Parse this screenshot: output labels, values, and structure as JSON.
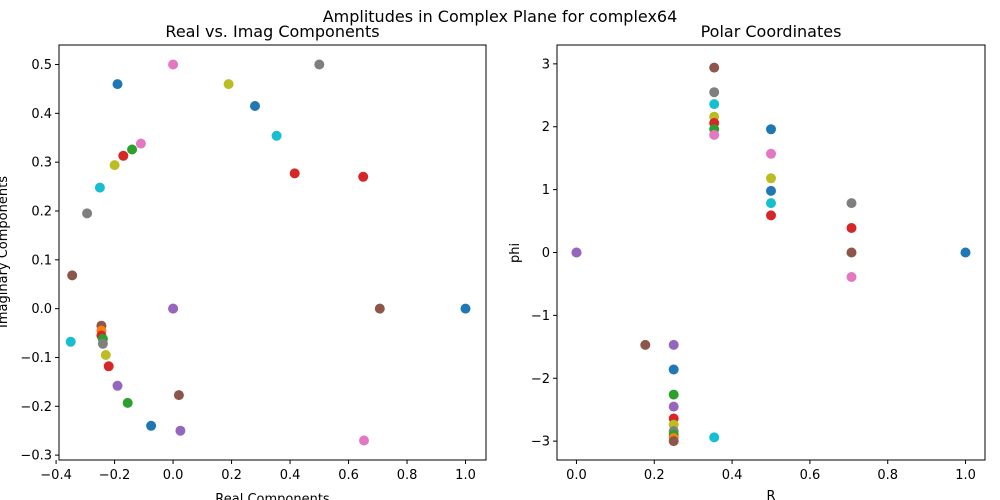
{
  "figure": {
    "title": "Amplitudes in Complex Plane for complex64"
  },
  "palette": [
    "#1f77b4",
    "#ff7f0e",
    "#2ca02c",
    "#d62728",
    "#9467bd",
    "#8c564b",
    "#e377c2",
    "#7f7f7f",
    "#bcbd22",
    "#17becf"
  ],
  "chart_data": [
    {
      "type": "scatter",
      "title": "Real vs. Imag Components",
      "xlabel": "Real Components",
      "ylabel": "Imaginary Components",
      "xlim": [
        -0.39,
        1.07
      ],
      "ylim": [
        -0.31,
        0.54
      ],
      "xticks": [
        -0.4,
        -0.2,
        0.0,
        0.2,
        0.4,
        0.6,
        0.8,
        1.0
      ],
      "xtick_labels": [
        "−0.4",
        "−0.2",
        "0.0",
        "0.2",
        "0.4",
        "0.6",
        "0.8",
        "1.0"
      ],
      "yticks": [
        -0.3,
        -0.2,
        -0.1,
        0.0,
        0.1,
        0.2,
        0.3,
        0.4,
        0.5
      ],
      "ytick_labels": [
        "−0.3",
        "−0.2",
        "−0.1",
        "0.0",
        "0.1",
        "0.2",
        "0.3",
        "0.4",
        "0.5"
      ],
      "grid": false,
      "points": [
        {
          "x": 1.0,
          "y": 0.0,
          "color": "#1f77b4"
        },
        {
          "x": 0.707,
          "y": 0.0,
          "color": "#8c564b"
        },
        {
          "x": 0.5,
          "y": 0.5,
          "color": "#7f7f7f"
        },
        {
          "x": 0.0,
          "y": 0.5,
          "color": "#e377c2"
        },
        {
          "x": 0.19,
          "y": 0.46,
          "color": "#bcbd22"
        },
        {
          "x": -0.19,
          "y": 0.46,
          "color": "#1f77b4"
        },
        {
          "x": 0.28,
          "y": 0.415,
          "color": "#1f77b4"
        },
        {
          "x": 0.354,
          "y": 0.354,
          "color": "#17becf"
        },
        {
          "x": -0.11,
          "y": 0.338,
          "color": "#e377c2"
        },
        {
          "x": -0.14,
          "y": 0.326,
          "color": "#2ca02c"
        },
        {
          "x": -0.17,
          "y": 0.313,
          "color": "#d62728"
        },
        {
          "x": -0.2,
          "y": 0.294,
          "color": "#bcbd22"
        },
        {
          "x": 0.416,
          "y": 0.277,
          "color": "#d62728"
        },
        {
          "x": 0.65,
          "y": 0.27,
          "color": "#d62728"
        },
        {
          "x": -0.25,
          "y": 0.248,
          "color": "#17becf"
        },
        {
          "x": -0.294,
          "y": 0.195,
          "color": "#7f7f7f"
        },
        {
          "x": -0.345,
          "y": 0.068,
          "color": "#8c564b"
        },
        {
          "x": 0.0,
          "y": 0.0,
          "color": "#e377c2"
        },
        {
          "x": 0.0,
          "y": 0.0,
          "color": "#9467bd"
        },
        {
          "x": -0.245,
          "y": -0.035,
          "color": "#8c564b"
        },
        {
          "x": -0.245,
          "y": -0.045,
          "color": "#ff7f0e"
        },
        {
          "x": -0.245,
          "y": -0.055,
          "color": "#d62728"
        },
        {
          "x": -0.24,
          "y": -0.062,
          "color": "#2ca02c"
        },
        {
          "x": -0.24,
          "y": -0.072,
          "color": "#7f7f7f"
        },
        {
          "x": -0.35,
          "y": -0.068,
          "color": "#17becf"
        },
        {
          "x": -0.23,
          "y": -0.095,
          "color": "#bcbd22"
        },
        {
          "x": -0.22,
          "y": -0.118,
          "color": "#d62728"
        },
        {
          "x": -0.19,
          "y": -0.158,
          "color": "#9467bd"
        },
        {
          "x": 0.02,
          "y": -0.177,
          "color": "#8c564b"
        },
        {
          "x": -0.155,
          "y": -0.193,
          "color": "#2ca02c"
        },
        {
          "x": -0.075,
          "y": -0.24,
          "color": "#1f77b4"
        },
        {
          "x": 0.025,
          "y": -0.25,
          "color": "#9467bd"
        },
        {
          "x": 0.653,
          "y": -0.27,
          "color": "#e377c2"
        }
      ]
    },
    {
      "type": "scatter",
      "title": "Polar Coordinates",
      "xlabel": "R",
      "ylabel": "phi",
      "xlim": [
        -0.05,
        1.05
      ],
      "ylim": [
        -3.3,
        3.3
      ],
      "xticks": [
        0.0,
        0.2,
        0.4,
        0.6,
        0.8,
        1.0
      ],
      "xtick_labels": [
        "0.0",
        "0.2",
        "0.4",
        "0.6",
        "0.8",
        "1.0"
      ],
      "yticks": [
        -3,
        -2,
        -1,
        0,
        1,
        2,
        3
      ],
      "ytick_labels": [
        "−3",
        "−2",
        "−1",
        "0",
        "1",
        "2",
        "3"
      ],
      "grid": false,
      "points": [
        {
          "x": 0.0,
          "y": 0.0,
          "color": "#e377c2"
        },
        {
          "x": 0.0,
          "y": 0.0,
          "color": "#9467bd"
        },
        {
          "x": 0.177,
          "y": -1.47,
          "color": "#8c564b"
        },
        {
          "x": 0.25,
          "y": -1.47,
          "color": "#9467bd"
        },
        {
          "x": 0.25,
          "y": -1.86,
          "color": "#1f77b4"
        },
        {
          "x": 0.25,
          "y": -2.26,
          "color": "#2ca02c"
        },
        {
          "x": 0.25,
          "y": -2.45,
          "color": "#9467bd"
        },
        {
          "x": 0.25,
          "y": -2.64,
          "color": "#d62728"
        },
        {
          "x": 0.25,
          "y": -2.74,
          "color": "#bcbd22"
        },
        {
          "x": 0.25,
          "y": -2.84,
          "color": "#7f7f7f"
        },
        {
          "x": 0.25,
          "y": -2.9,
          "color": "#2ca02c"
        },
        {
          "x": 0.25,
          "y": -2.95,
          "color": "#ff7f0e"
        },
        {
          "x": 0.25,
          "y": -3.0,
          "color": "#8c564b"
        },
        {
          "x": 0.354,
          "y": -2.94,
          "color": "#17becf"
        },
        {
          "x": 0.354,
          "y": 2.94,
          "color": "#8c564b"
        },
        {
          "x": 0.354,
          "y": 2.55,
          "color": "#7f7f7f"
        },
        {
          "x": 0.354,
          "y": 2.36,
          "color": "#17becf"
        },
        {
          "x": 0.354,
          "y": 2.16,
          "color": "#bcbd22"
        },
        {
          "x": 0.354,
          "y": 2.06,
          "color": "#d62728"
        },
        {
          "x": 0.354,
          "y": 1.96,
          "color": "#2ca02c"
        },
        {
          "x": 0.354,
          "y": 1.87,
          "color": "#e377c2"
        },
        {
          "x": 0.5,
          "y": 1.96,
          "color": "#1f77b4"
        },
        {
          "x": 0.5,
          "y": 1.57,
          "color": "#e377c2"
        },
        {
          "x": 0.5,
          "y": 1.18,
          "color": "#bcbd22"
        },
        {
          "x": 0.5,
          "y": 0.98,
          "color": "#1f77b4"
        },
        {
          "x": 0.5,
          "y": 0.785,
          "color": "#17becf"
        },
        {
          "x": 0.5,
          "y": 0.59,
          "color": "#d62728"
        },
        {
          "x": 0.707,
          "y": 0.785,
          "color": "#7f7f7f"
        },
        {
          "x": 0.707,
          "y": 0.39,
          "color": "#d62728"
        },
        {
          "x": 0.707,
          "y": 0.0,
          "color": "#8c564b"
        },
        {
          "x": 0.707,
          "y": -0.39,
          "color": "#e377c2"
        },
        {
          "x": 1.0,
          "y": 0.0,
          "color": "#1f77b4"
        }
      ]
    }
  ]
}
